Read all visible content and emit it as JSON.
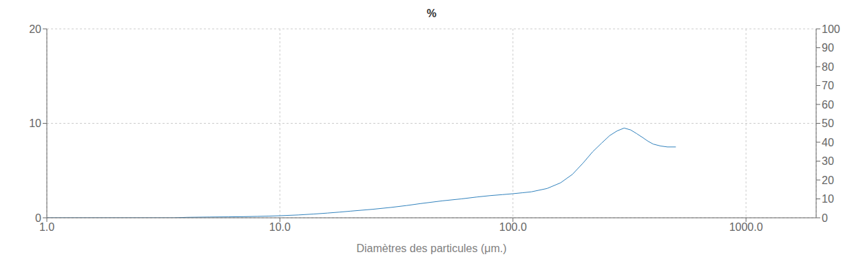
{
  "chart_data": {
    "type": "line",
    "title": "%",
    "xlabel": "Diamètres des particules (μm.)",
    "log": "x",
    "grid": true,
    "xlim": [
      1.0,
      2000.0
    ],
    "xticks": [
      {
        "value": 1.0,
        "label": "1.0"
      },
      {
        "value": 10.0,
        "label": "10.0"
      },
      {
        "value": 100.0,
        "label": "100.0"
      },
      {
        "value": 1000.0,
        "label": "1000.0"
      }
    ],
    "ylim": [
      0,
      20
    ],
    "yticks": [
      0,
      10,
      20
    ],
    "y2lim": [
      0,
      100
    ],
    "y2ticks": [
      0,
      10,
      20,
      30,
      40,
      50,
      60,
      70,
      80,
      90,
      100
    ],
    "x": [
      1.0,
      1.5,
      2.0,
      2.5,
      3.0,
      3.5,
      4.0,
      5.0,
      6.0,
      7.0,
      8.0,
      9.0,
      10.0,
      12.0,
      14.0,
      16.0,
      18.0,
      20.0,
      25.0,
      30.0,
      35.0,
      40.0,
      50.0,
      60.0,
      70.0,
      80.0,
      90.0,
      100.0,
      110.0,
      120.0,
      140.0,
      160.0,
      180.0,
      200.0,
      220.0,
      240.0,
      260.0,
      280.0,
      300.0,
      320.0,
      340.0,
      360.0,
      380.0,
      400.0,
      430.0,
      460.0,
      500.0
    ],
    "values": [
      0.0,
      0.0,
      0.0,
      0.0,
      0.0,
      0.0,
      0.05,
      0.08,
      0.1,
      0.12,
      0.15,
      0.18,
      0.22,
      0.3,
      0.4,
      0.5,
      0.6,
      0.7,
      0.9,
      1.1,
      1.3,
      1.5,
      1.8,
      2.0,
      2.2,
      2.35,
      2.45,
      2.55,
      2.65,
      2.75,
      3.1,
      3.7,
      4.6,
      5.8,
      7.0,
      7.9,
      8.7,
      9.2,
      9.5,
      9.3,
      8.9,
      8.5,
      8.1,
      7.8,
      7.6,
      7.5,
      7.5
    ]
  }
}
